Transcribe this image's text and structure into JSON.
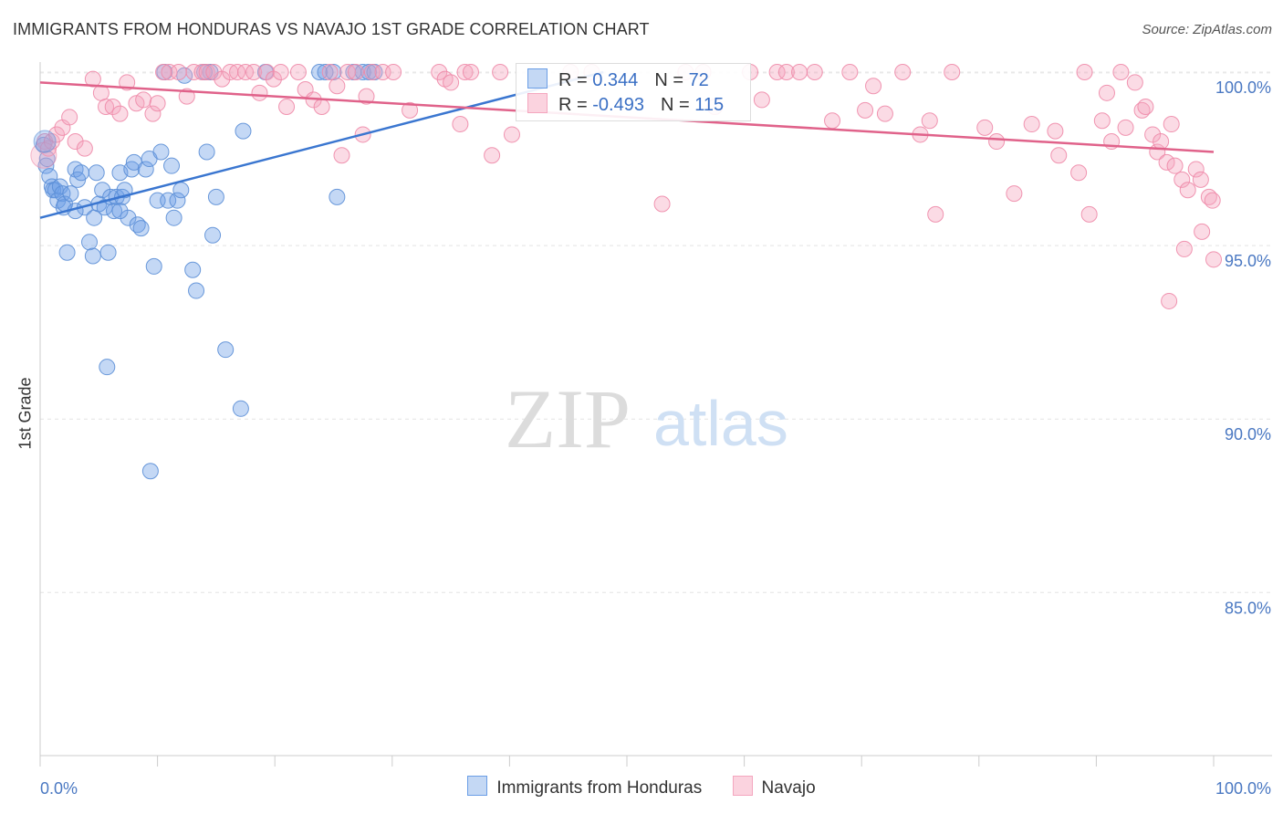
{
  "title": "IMMIGRANTS FROM HONDURAS VS NAVAJO 1ST GRADE CORRELATION CHART",
  "source": "Source: ZipAtlas.com",
  "watermark": {
    "zip": "ZIP",
    "atlas": "atlas"
  },
  "legend_top": {
    "rows": [
      {
        "r_label": "R =",
        "r_value": "0.344",
        "n_label": "N =",
        "n_value": "72",
        "color": "#6b9ee6"
      },
      {
        "r_label": "R =",
        "r_value": "-0.493",
        "n_label": "N =",
        "n_value": "115",
        "color": "#f08aa8"
      }
    ]
  },
  "chart_data": {
    "type": "scatter",
    "title": "IMMIGRANTS FROM HONDURAS VS NAVAJO 1ST GRADE CORRELATION CHART",
    "xlabel": "",
    "ylabel": "1st Grade",
    "xlim": [
      0,
      100
    ],
    "ylim": [
      80.3,
      100.5
    ],
    "x_tick_labels": [
      "0.0%",
      "100.0%"
    ],
    "y_ticks": [
      85,
      90,
      95,
      100
    ],
    "y_tick_labels": [
      "85.0%",
      "90.0%",
      "95.0%",
      "100.0%"
    ],
    "grid": true,
    "series": [
      {
        "name": "Immigrants from Honduras",
        "color": "#6b9ee6",
        "stroke": "#5b8ed6",
        "trend": {
          "x": [
            0,
            48
          ],
          "y": [
            95.8,
            100.0
          ],
          "color": "#3a76d0"
        },
        "points": [
          [
            0.3,
            97.9
          ],
          [
            0.5,
            97.3
          ],
          [
            0.6,
            97.5
          ],
          [
            0.8,
            97.0
          ],
          [
            1.0,
            96.7
          ],
          [
            1.1,
            96.6
          ],
          [
            1.3,
            96.6
          ],
          [
            1.5,
            96.3
          ],
          [
            1.7,
            96.7
          ],
          [
            1.9,
            96.5
          ],
          [
            2.0,
            96.1
          ],
          [
            2.1,
            96.2
          ],
          [
            2.3,
            94.8
          ],
          [
            2.6,
            96.5
          ],
          [
            3.0,
            97.2
          ],
          [
            3.2,
            96.9
          ],
          [
            3.5,
            97.1
          ],
          [
            3.8,
            96.1
          ],
          [
            4.2,
            95.1
          ],
          [
            4.6,
            95.8
          ],
          [
            4.8,
            97.1
          ],
          [
            5.0,
            96.2
          ],
          [
            5.3,
            96.6
          ],
          [
            5.5,
            96.1
          ],
          [
            5.8,
            94.8
          ],
          [
            6.0,
            96.4
          ],
          [
            6.3,
            96.0
          ],
          [
            6.5,
            96.4
          ],
          [
            6.8,
            97.1
          ],
          [
            7.0,
            96.4
          ],
          [
            7.2,
            96.6
          ],
          [
            7.5,
            95.8
          ],
          [
            7.8,
            97.2
          ],
          [
            8.0,
            97.4
          ],
          [
            8.3,
            95.6
          ],
          [
            8.6,
            95.5
          ],
          [
            9.0,
            97.2
          ],
          [
            9.3,
            97.5
          ],
          [
            9.7,
            94.4
          ],
          [
            10.0,
            96.3
          ],
          [
            10.3,
            97.7
          ],
          [
            10.6,
            100.0
          ],
          [
            10.9,
            96.3
          ],
          [
            11.2,
            97.3
          ],
          [
            11.4,
            95.8
          ],
          [
            11.7,
            96.3
          ],
          [
            12.0,
            96.6
          ],
          [
            12.3,
            99.9
          ],
          [
            13.0,
            94.3
          ],
          [
            13.3,
            93.7
          ],
          [
            14.2,
            97.7
          ],
          [
            14.5,
            100.0
          ],
          [
            14.7,
            95.3
          ],
          [
            15.0,
            96.4
          ],
          [
            15.8,
            92.0
          ],
          [
            17.1,
            90.3
          ],
          [
            17.3,
            98.3
          ],
          [
            19.2,
            100.0
          ],
          [
            23.8,
            100.0
          ],
          [
            24.3,
            100.0
          ],
          [
            25.0,
            100.0
          ],
          [
            25.3,
            96.4
          ],
          [
            26.7,
            100.0
          ],
          [
            27.5,
            100.0
          ],
          [
            28.0,
            100.0
          ],
          [
            28.5,
            100.0
          ],
          [
            5.7,
            91.5
          ],
          [
            9.4,
            88.5
          ],
          [
            4.5,
            94.7
          ],
          [
            3.0,
            96.0
          ],
          [
            6.8,
            96.0
          ],
          [
            14.0,
            100.0
          ]
        ]
      },
      {
        "name": "Navajo",
        "color": "#f4a6bf",
        "stroke": "#ee8aa9",
        "trend": {
          "x": [
            0,
            100
          ],
          "y": [
            99.7,
            97.7
          ],
          "color": "#e0628a"
        },
        "points": [
          [
            0.4,
            98.0
          ],
          [
            0.7,
            97.8
          ],
          [
            1.0,
            98.0
          ],
          [
            1.4,
            98.2
          ],
          [
            1.9,
            98.4
          ],
          [
            2.5,
            98.7
          ],
          [
            3.0,
            98.0
          ],
          [
            3.8,
            97.8
          ],
          [
            4.5,
            99.8
          ],
          [
            5.2,
            99.4
          ],
          [
            5.6,
            99.0
          ],
          [
            6.2,
            99.0
          ],
          [
            6.8,
            98.8
          ],
          [
            7.4,
            99.7
          ],
          [
            8.2,
            99.1
          ],
          [
            8.8,
            99.2
          ],
          [
            9.6,
            98.8
          ],
          [
            10.0,
            99.1
          ],
          [
            10.5,
            100.0
          ],
          [
            11.0,
            100.0
          ],
          [
            11.8,
            100.0
          ],
          [
            12.5,
            99.3
          ],
          [
            13.1,
            100.0
          ],
          [
            13.8,
            100.0
          ],
          [
            14.2,
            100.0
          ],
          [
            14.8,
            100.0
          ],
          [
            15.5,
            99.8
          ],
          [
            16.2,
            100.0
          ],
          [
            16.8,
            100.0
          ],
          [
            17.5,
            100.0
          ],
          [
            18.2,
            100.0
          ],
          [
            18.7,
            99.4
          ],
          [
            19.3,
            100.0
          ],
          [
            19.9,
            99.8
          ],
          [
            20.5,
            100.0
          ],
          [
            21.0,
            99.0
          ],
          [
            22.0,
            100.0
          ],
          [
            22.6,
            99.5
          ],
          [
            23.3,
            99.2
          ],
          [
            24.0,
            99.0
          ],
          [
            24.7,
            100.0
          ],
          [
            25.3,
            99.6
          ],
          [
            25.7,
            97.6
          ],
          [
            26.2,
            100.0
          ],
          [
            26.9,
            100.0
          ],
          [
            27.5,
            98.2
          ],
          [
            27.8,
            99.3
          ],
          [
            28.3,
            100.0
          ],
          [
            29.2,
            100.0
          ],
          [
            30.1,
            100.0
          ],
          [
            31.5,
            98.9
          ],
          [
            34.0,
            100.0
          ],
          [
            34.5,
            99.8
          ],
          [
            35.0,
            99.7
          ],
          [
            35.8,
            98.5
          ],
          [
            36.2,
            100.0
          ],
          [
            36.7,
            100.0
          ],
          [
            38.5,
            97.6
          ],
          [
            39.2,
            100.0
          ],
          [
            40.2,
            98.2
          ],
          [
            45.2,
            100.0
          ],
          [
            47.0,
            100.0
          ],
          [
            53.0,
            96.2
          ],
          [
            55.0,
            100.0
          ],
          [
            56.5,
            100.0
          ],
          [
            57.5,
            99.0
          ],
          [
            60.5,
            100.0
          ],
          [
            61.5,
            99.2
          ],
          [
            62.8,
            100.0
          ],
          [
            63.6,
            100.0
          ],
          [
            64.7,
            100.0
          ],
          [
            66.0,
            100.0
          ],
          [
            67.5,
            98.6
          ],
          [
            69.0,
            100.0
          ],
          [
            70.3,
            98.9
          ],
          [
            71.0,
            99.6
          ],
          [
            72.0,
            98.8
          ],
          [
            73.5,
            100.0
          ],
          [
            75.0,
            98.2
          ],
          [
            75.8,
            98.6
          ],
          [
            76.3,
            95.9
          ],
          [
            77.7,
            100.0
          ],
          [
            80.5,
            98.4
          ],
          [
            81.5,
            98.0
          ],
          [
            83.0,
            96.5
          ],
          [
            84.5,
            98.5
          ],
          [
            86.5,
            98.3
          ],
          [
            86.8,
            97.6
          ],
          [
            88.5,
            97.1
          ],
          [
            89.0,
            100.0
          ],
          [
            89.4,
            95.9
          ],
          [
            90.5,
            98.6
          ],
          [
            90.9,
            99.4
          ],
          [
            91.3,
            98.0
          ],
          [
            92.1,
            100.0
          ],
          [
            92.5,
            98.4
          ],
          [
            93.3,
            99.7
          ],
          [
            93.9,
            98.9
          ],
          [
            94.2,
            99.0
          ],
          [
            94.8,
            98.2
          ],
          [
            95.2,
            97.7
          ],
          [
            95.5,
            98.0
          ],
          [
            96.0,
            97.4
          ],
          [
            96.4,
            98.5
          ],
          [
            96.7,
            97.3
          ],
          [
            97.3,
            96.9
          ],
          [
            97.8,
            96.6
          ],
          [
            98.5,
            97.2
          ],
          [
            98.9,
            96.9
          ],
          [
            99.6,
            96.4
          ],
          [
            99.9,
            96.3
          ],
          [
            100.0,
            94.6
          ],
          [
            99.0,
            95.4
          ],
          [
            96.2,
            93.4
          ],
          [
            97.5,
            94.9
          ]
        ]
      }
    ]
  },
  "legend_bottom": {
    "items": [
      {
        "label": "Immigrants from Honduras",
        "color": "#6b9ee6"
      },
      {
        "label": "Navajo",
        "color": "#f4a6bf"
      }
    ]
  }
}
